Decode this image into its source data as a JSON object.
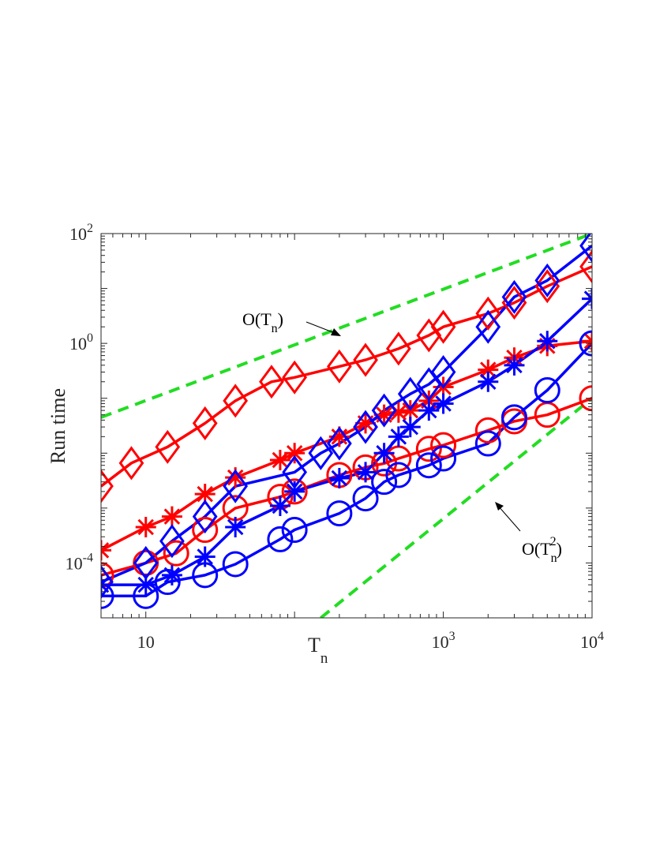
{
  "chart_data": {
    "type": "line",
    "xscale": "log",
    "yscale": "log",
    "xlim": [
      5,
      10000
    ],
    "ylim": [
      1e-05,
      100
    ],
    "xticks": [
      {
        "value": 10,
        "base": "10",
        "exp": ""
      },
      {
        "value": 1000,
        "base": "10",
        "exp": "3"
      },
      {
        "value": 10000,
        "base": "10",
        "exp": "4"
      }
    ],
    "yticks": [
      {
        "value": 0.0001,
        "base": "10",
        "exp": "-4"
      },
      {
        "value": 1,
        "base": "10",
        "exp": "0"
      },
      {
        "value": 100,
        "base": "10",
        "exp": "2"
      }
    ],
    "xlabel": {
      "base": "T",
      "sub": "n"
    },
    "ylabel": "Run time",
    "grid": false,
    "legend": "none",
    "series": [
      {
        "color": "#ff0000",
        "marker": "diamond",
        "x": [
          5,
          8,
          14,
          25,
          40,
          70,
          100,
          200,
          300,
          500,
          800,
          1000,
          2000,
          3000,
          5000,
          10000
        ],
        "y": [
          0.0025,
          0.0066,
          0.013,
          0.035,
          0.09,
          0.2,
          0.24,
          0.38,
          0.5,
          0.8,
          1.4,
          2,
          3.5,
          5.5,
          11,
          25
        ]
      },
      {
        "color": "#ff0000",
        "marker": "asterisk",
        "x": [
          5,
          10,
          15,
          25,
          40,
          80,
          100,
          200,
          300,
          400,
          500,
          600,
          800,
          1000,
          2000,
          3000,
          5000,
          10000
        ],
        "y": [
          0.00017,
          0.00045,
          0.0007,
          0.0018,
          0.0036,
          0.0075,
          0.01,
          0.02,
          0.035,
          0.05,
          0.055,
          0.06,
          0.09,
          0.16,
          0.33,
          0.55,
          0.9,
          1.1
        ]
      },
      {
        "color": "#ff0000",
        "marker": "circle",
        "x": [
          5,
          10,
          16,
          25,
          40,
          80,
          100,
          200,
          300,
          400,
          500,
          800,
          1000,
          2000,
          3000,
          5000,
          10000
        ],
        "y": [
          6e-05,
          0.0001,
          0.00015,
          0.0004,
          0.001,
          0.0016,
          0.002,
          0.004,
          0.0055,
          0.0065,
          0.008,
          0.012,
          0.014,
          0.026,
          0.038,
          0.05,
          0.1
        ]
      },
      {
        "color": "#0000ff",
        "marker": "diamond",
        "x": [
          5,
          10,
          15,
          25,
          40,
          100,
          150,
          200,
          300,
          400,
          600,
          800,
          1000,
          2000,
          3000,
          5000,
          10000
        ],
        "y": [
          4.5e-05,
          0.0001,
          0.00025,
          0.0007,
          0.0025,
          0.0045,
          0.01,
          0.015,
          0.03,
          0.06,
          0.12,
          0.18,
          0.3,
          2,
          7,
          14,
          60
        ]
      },
      {
        "color": "#0000ff",
        "marker": "asterisk",
        "x": [
          5,
          10,
          15,
          25,
          40,
          80,
          100,
          200,
          300,
          400,
          500,
          600,
          800,
          1000,
          2000,
          3000,
          5000,
          10000
        ],
        "y": [
          4e-05,
          4e-05,
          6e-05,
          0.00013,
          0.00045,
          0.0011,
          0.002,
          0.0035,
          0.0045,
          0.01,
          0.02,
          0.03,
          0.06,
          0.08,
          0.2,
          0.4,
          1.1,
          6.5
        ]
      },
      {
        "color": "#0000ff",
        "marker": "circle",
        "x": [
          5,
          10,
          14,
          25,
          40,
          80,
          100,
          200,
          300,
          400,
          500,
          800,
          1000,
          2000,
          3000,
          5000,
          10000
        ],
        "y": [
          2.5e-05,
          2.5e-05,
          4.5e-05,
          6e-05,
          9.5e-05,
          0.00027,
          0.0004,
          0.0008,
          0.0015,
          0.003,
          0.004,
          0.006,
          0.008,
          0.015,
          0.045,
          0.14,
          1
        ]
      }
    ],
    "reference_lines": [
      {
        "color": "#22dd22",
        "style": "dashed",
        "x": [
          5,
          10000
        ],
        "y": [
          0.045,
          100
        ],
        "label": {
          "base": "O(T",
          "sub": "n",
          "sup": "",
          "tail": ")"
        }
      },
      {
        "color": "#22dd22",
        "style": "dashed",
        "x": [
          150,
          10000
        ],
        "y": [
          1e-05,
          0.1
        ],
        "label": {
          "base": "O(T",
          "sub": "n",
          "sup": "2",
          "tail": ")"
        }
      }
    ]
  }
}
